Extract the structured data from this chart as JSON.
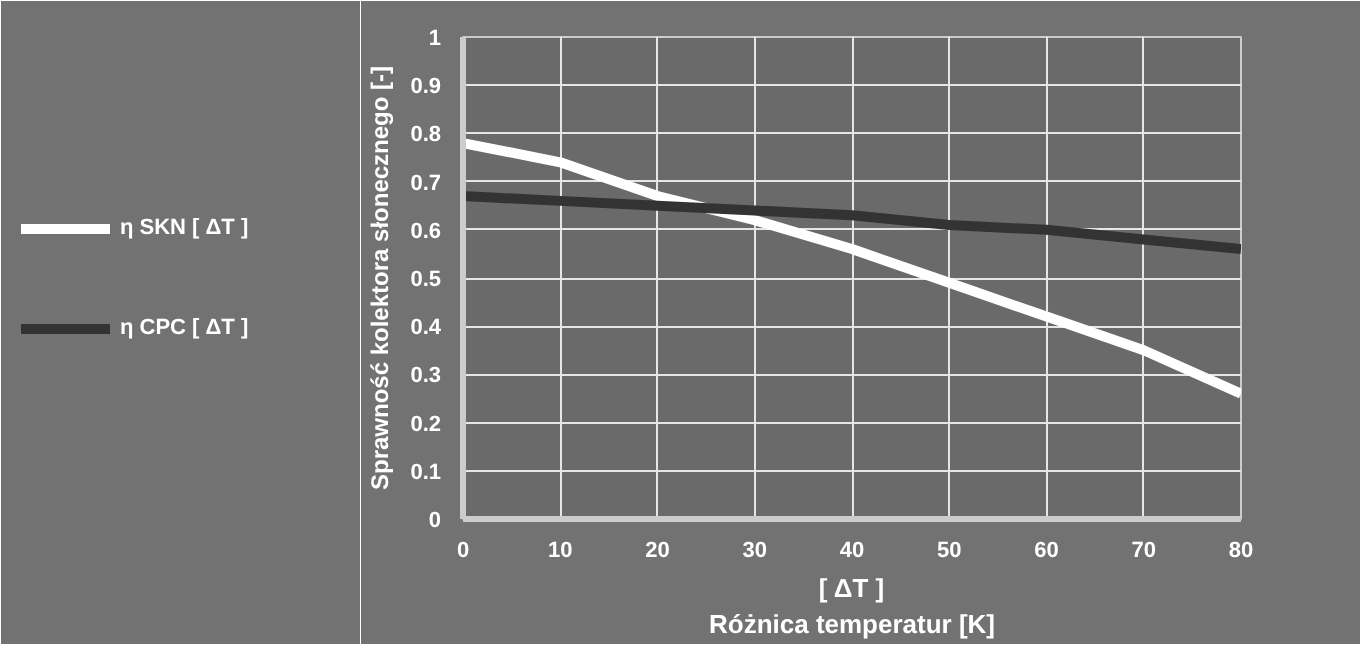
{
  "chart_data": {
    "type": "line",
    "xlabel": "[ ΔT ]\nRóżnica temperatur [K]",
    "ylabel": "Sprawność kolektora słonecznego [-]",
    "x": [
      0,
      10,
      20,
      30,
      40,
      50,
      60,
      70,
      80
    ],
    "series": [
      {
        "name": "η SKN [ ΔT ]",
        "color": "#ffffff",
        "values": [
          0.78,
          0.74,
          0.67,
          0.62,
          0.56,
          0.49,
          0.42,
          0.35,
          0.26
        ]
      },
      {
        "name": "η CPC [ ΔT ]",
        "color": "#333333",
        "values": [
          0.67,
          0.66,
          0.65,
          0.64,
          0.63,
          0.61,
          0.6,
          0.58,
          0.56
        ]
      }
    ],
    "xlim": [
      0,
      80
    ],
    "ylim": [
      0,
      1
    ],
    "xticks": [
      0,
      10,
      20,
      30,
      40,
      50,
      60,
      70,
      80
    ],
    "yticks": [
      0,
      0.1,
      0.2,
      0.3,
      0.4,
      0.5,
      0.6,
      0.7,
      0.8,
      0.9,
      1
    ],
    "grid": true,
    "legend": "left",
    "marker": "none",
    "line_style": "solid"
  }
}
